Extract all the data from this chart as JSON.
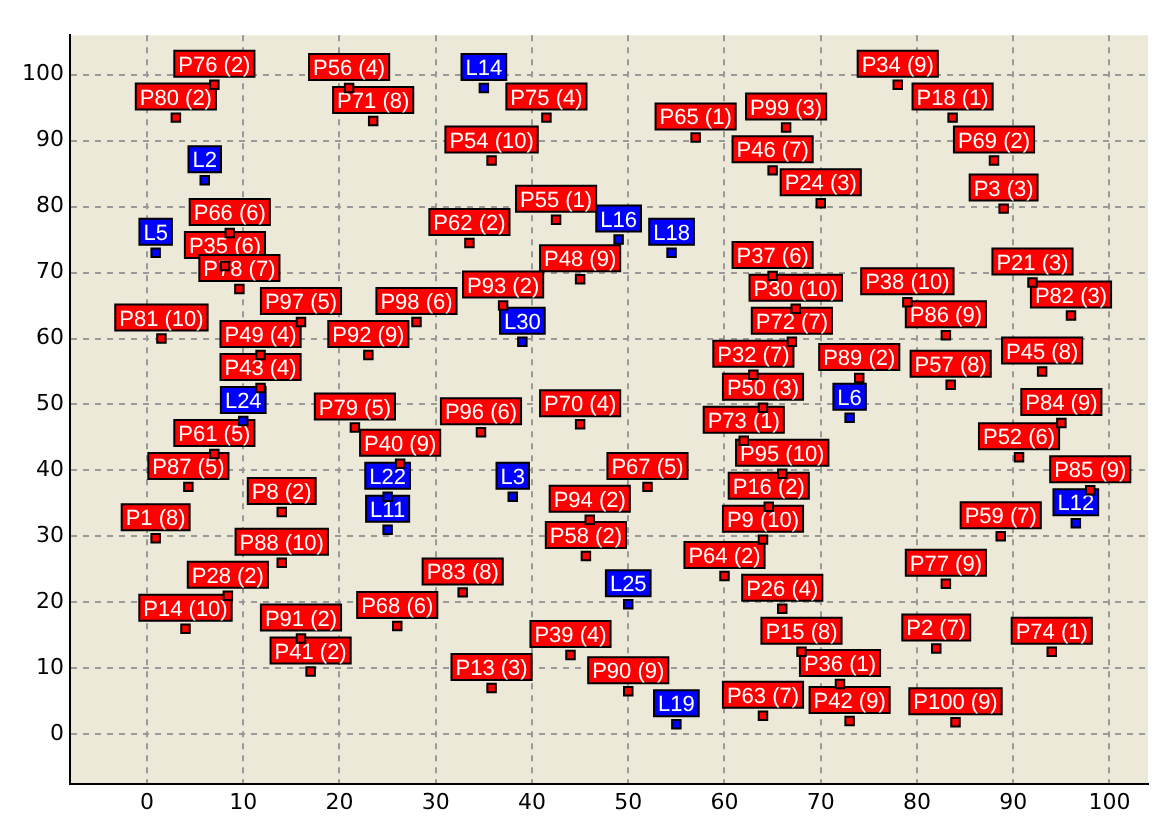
{
  "chart_data": {
    "type": "scatter",
    "xlim": [
      -8,
      104
    ],
    "ylim": [
      -7.5,
      106
    ],
    "xticks": [
      0,
      10,
      20,
      30,
      40,
      50,
      60,
      70,
      80,
      90,
      100
    ],
    "yticks": [
      0,
      10,
      20,
      30,
      40,
      50,
      60,
      70,
      80,
      90,
      100
    ],
    "grid": true,
    "marker": "square",
    "legend": false,
    "series": [
      {
        "color": "#0000ff",
        "x": [
          35,
          6,
          0.9,
          49,
          54.5,
          39,
          10,
          38,
          25,
          25,
          50,
          55,
          73,
          96.5
        ],
        "values": [
          98,
          84,
          73,
          75,
          73,
          59.5,
          47.5,
          36,
          36,
          31,
          19.7,
          1.5,
          48,
          32
        ],
        "value_labels": [
          "L14",
          "L2",
          "L5",
          "L16",
          "L18",
          "L30",
          "L24",
          "L3",
          "L22",
          "L11",
          "L25",
          "L19",
          "L6",
          "L12"
        ]
      },
      {
        "color": "#ff0000",
        "x": [
          7,
          3,
          21,
          23.5,
          41.5,
          35.8,
          8.6,
          8.1,
          42.5,
          33.5,
          45,
          37,
          28,
          9.6,
          1.5,
          16,
          11.8,
          11.8,
          23,
          7,
          21.6,
          26.3,
          34.7,
          45,
          4.3,
          14,
          0.9,
          14,
          8.4,
          4,
          16,
          17,
          26,
          32.8,
          35.8,
          44,
          50,
          46,
          45.6,
          52,
          57,
          66.4,
          65,
          70,
          78,
          83.7,
          88,
          89,
          92,
          96,
          79,
          83,
          74,
          83.5,
          93,
          95,
          90.6,
          98,
          88.7,
          83,
          82,
          94,
          84,
          72,
          73,
          64,
          68,
          66,
          60,
          64,
          64.6,
          66,
          62,
          64,
          63,
          67,
          67.4,
          65
        ],
        "values": [
          98.5,
          93.5,
          98,
          93,
          93.5,
          87,
          76,
          71,
          78,
          74.5,
          69,
          65,
          62.5,
          67.5,
          60,
          62.5,
          52.5,
          57.5,
          57.5,
          42.5,
          46.5,
          41,
          45.8,
          47,
          37.5,
          33.7,
          29.7,
          26,
          21,
          16,
          14.5,
          9.5,
          16.4,
          21.5,
          7,
          12,
          6.5,
          32.5,
          27,
          37.5,
          90.5,
          92,
          85.5,
          80.5,
          98.5,
          93.5,
          87,
          79.7,
          68.5,
          63.5,
          65.5,
          60.5,
          54,
          53,
          55,
          47.2,
          42,
          37,
          30,
          22.8,
          13,
          12.5,
          1.8,
          7.6,
          2,
          2.8,
          12.5,
          19,
          24,
          29.5,
          34.5,
          39.5,
          44.5,
          49.5,
          54.5,
          59.5,
          64.5,
          69.5
        ],
        "value_labels": [
          "P76 (2)",
          "P80 (2)",
          "P56 (4)",
          "P71 (8)",
          "P75 (4)",
          "P54 (10)",
          "P66 (6)",
          "P35 (6)",
          "P55 (1)",
          "P62 (2)",
          "P48 (9)",
          "P93 (2)",
          "P98 (6)",
          "P78 (7)",
          "P81 (10)",
          "P97 (5)",
          "P43 (4)",
          "P49 (4)",
          "P92 (9)",
          "P61 (5)",
          "P79 (5)",
          "P40 (9)",
          "P96 (6)",
          "P70 (4)",
          "P87 (5)",
          "P8 (2)",
          "P1 (8)",
          "P88 (10)",
          "P28 (2)",
          "P14 (10)",
          "P91 (2)",
          "P41 (2)",
          "P68 (6)",
          "P83 (8)",
          "P13 (3)",
          "P39 (4)",
          "P90 (9)",
          "P94 (2)",
          "P58 (2)",
          "P67 (5)",
          "P65 (1)",
          "P99 (3)",
          "P46 (7)",
          "P24 (3)",
          "P34 (9)",
          "P18 (1)",
          "P69 (2)",
          "P3 (3)",
          "P21 (3)",
          "P82 (3)",
          "P38 (10)",
          "P86 (9)",
          "P89 (2)",
          "P57 (8)",
          "P45 (8)",
          "P84 (9)",
          "P52 (6)",
          "P85 (9)",
          "P59 (7)",
          "P77 (9)",
          "P2 (7)",
          "P74 (1)",
          "P100 (9)",
          "P36 (1)",
          "P42 (9)",
          "P63 (7)",
          "P15 (8)",
          "P26 (4)",
          "P64 (2)",
          "P9 (10)",
          "P16 (2)",
          "P95 (10)",
          "P73 (1)",
          "P50 (3)",
          "P32 (7)",
          "P72 (7)",
          "P30 (10)",
          "P37 (6)"
        ]
      }
    ]
  }
}
